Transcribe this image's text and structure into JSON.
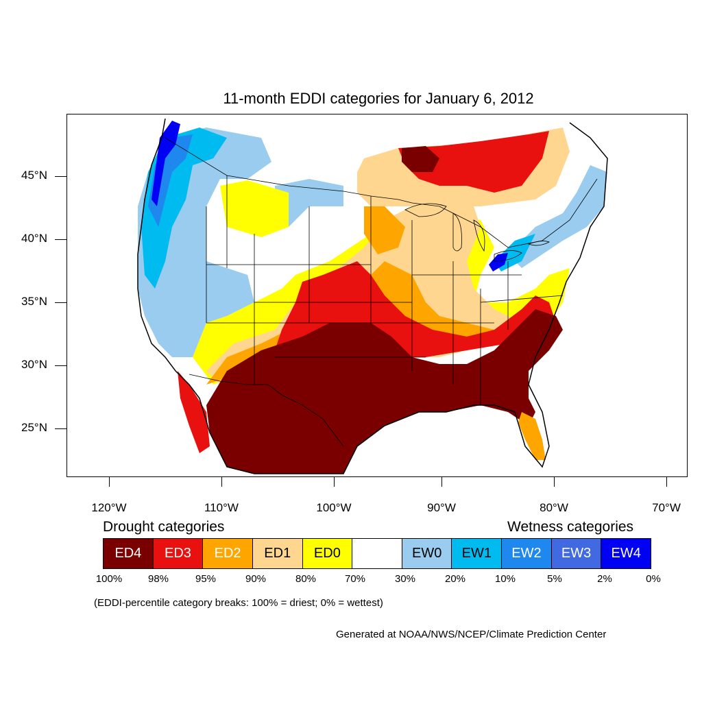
{
  "title": "11-month EDDI categories for January 6, 2012",
  "lat_labels": [
    "45°N",
    "40°N",
    "35°N",
    "30°N",
    "25°N"
  ],
  "lon_labels": [
    "120°W",
    "110°W",
    "100°W",
    "90°W",
    "80°W",
    "70°W"
  ],
  "legend": {
    "drought_title": "Drought categories",
    "wetness_title": "Wetness categories",
    "boxes": [
      {
        "label": "ED4",
        "color": "#7a0000",
        "text_color": "#ffffff"
      },
      {
        "label": "ED3",
        "color": "#e8110f",
        "text_color": "#ffffff"
      },
      {
        "label": "ED2",
        "color": "#ffa500",
        "text_color": "#ffffff"
      },
      {
        "label": "ED1",
        "color": "#ffd68f",
        "text_color": "#000000"
      },
      {
        "label": "ED0",
        "color": "#ffff00",
        "text_color": "#000000"
      },
      {
        "label": "",
        "color": "#ffffff",
        "text_color": "#000000"
      },
      {
        "label": "EW0",
        "color": "#99ccee",
        "text_color": "#000000"
      },
      {
        "label": "EW1",
        "color": "#00bbf0",
        "text_color": "#000000"
      },
      {
        "label": "EW2",
        "color": "#1e88ef",
        "text_color": "#ffffff"
      },
      {
        "label": "EW3",
        "color": "#4169e1",
        "text_color": "#ffffff"
      },
      {
        "label": "EW4",
        "color": "#0000f5",
        "text_color": "#ffffff"
      }
    ],
    "percent_breaks": [
      "100%",
      "98%",
      "95%",
      "90%",
      "80%",
      "70%",
      "30%",
      "20%",
      "10%",
      "5%",
      "2%",
      "0%"
    ]
  },
  "note": "(EDDI-percentile category breaks: 100% = driest; 0% = wettest)",
  "credit": "Generated at NOAA/NWS/NCEP/Climate Prediction Center"
}
